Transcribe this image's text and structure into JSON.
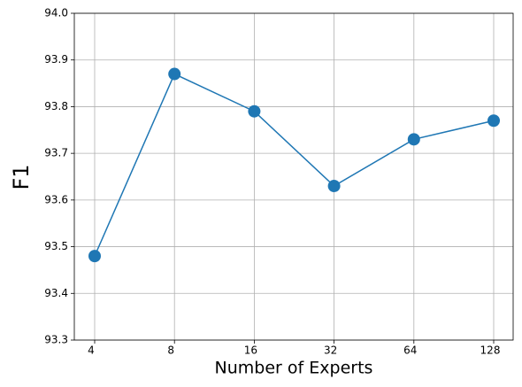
{
  "chart_data": {
    "type": "line",
    "xlabel": "Number of Experts",
    "ylabel": "F1",
    "categories": [
      "4",
      "8",
      "16",
      "32",
      "64",
      "128"
    ],
    "series": [
      {
        "color": "#1f77b4",
        "values": [
          93.48,
          93.87,
          93.79,
          93.63,
          93.73,
          93.77
        ]
      }
    ],
    "ylim": [
      93.3,
      94.0
    ],
    "yticks": [
      93.3,
      93.4,
      93.5,
      93.6,
      93.7,
      93.8,
      93.9,
      {
        "value": 94.0,
        "label": "94.0"
      }
    ],
    "grid": true
  }
}
